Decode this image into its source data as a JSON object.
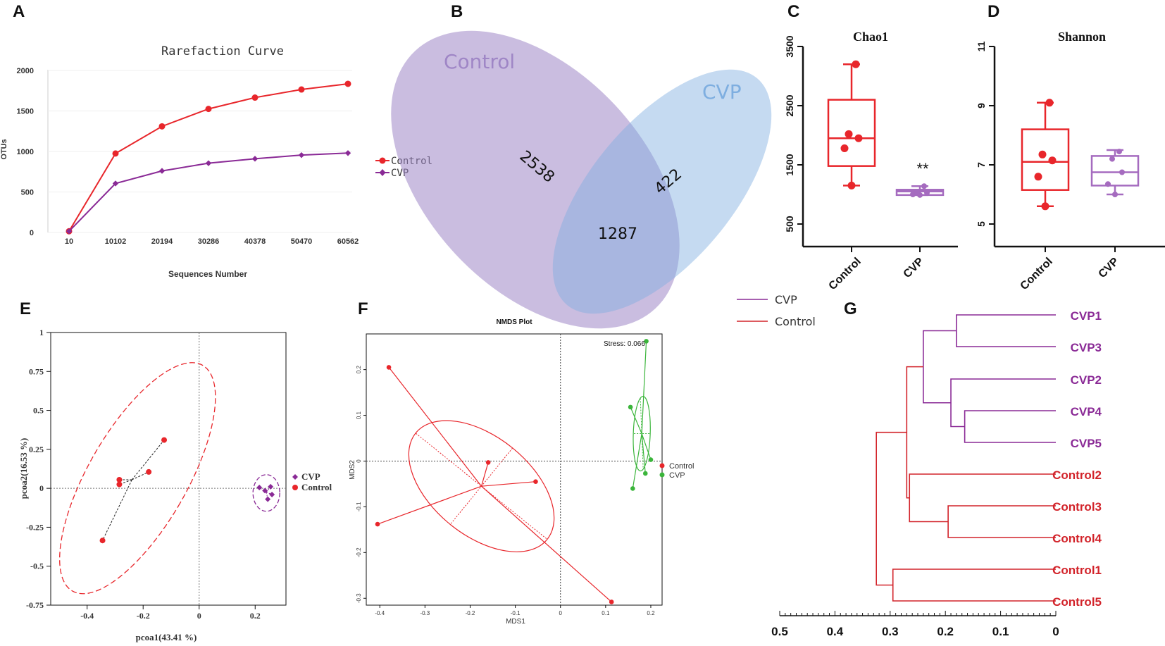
{
  "panel_letters": [
    "A",
    "B",
    "C",
    "D",
    "E",
    "F",
    "G"
  ],
  "chart_data": [
    {
      "id": "A",
      "type": "line",
      "title": "Rarefaction Curve",
      "xlabel": "Sequences Number",
      "ylabel": "OTUs",
      "categories": [
        "10",
        "10102",
        "20194",
        "30286",
        "40378",
        "50470",
        "60562"
      ],
      "ylim": [
        0,
        2000
      ],
      "yticks": [
        0,
        500,
        1000,
        1500,
        2000
      ],
      "series": [
        {
          "name": "Control",
          "color": "#e8262b",
          "marker": "circle",
          "values": [
            15,
            975,
            1310,
            1525,
            1665,
            1765,
            1835
          ]
        },
        {
          "name": "CVP",
          "color": "#8a2a96",
          "marker": "diamond",
          "values": [
            15,
            605,
            760,
            855,
            910,
            955,
            980
          ]
        }
      ]
    },
    {
      "id": "B",
      "type": "venn",
      "sets": [
        {
          "name": "Control",
          "color": "#9f86c6",
          "unique": "2538"
        },
        {
          "name": "CVP",
          "color": "#7eaee0",
          "unique": "422"
        }
      ],
      "intersection": "1287"
    },
    {
      "id": "C",
      "type": "box",
      "title": "Chao1",
      "categories": [
        "Control",
        "CVP"
      ],
      "ylim": [
        500,
        3500
      ],
      "yticks": [
        500,
        1500,
        2500,
        3500
      ],
      "annotation": "**",
      "groups": [
        {
          "name": "Control",
          "color": "#e8262b",
          "min": 1150,
          "q1": 1480,
          "median": 1950,
          "q3": 2600,
          "max": 3200,
          "points": [
            1150,
            1780,
            1950,
            2020,
            3200
          ]
        },
        {
          "name": "CVP",
          "color": "#a56bbf",
          "min": 990,
          "q1": 990,
          "median": 1050,
          "q3": 1080,
          "max": 1140,
          "points": [
            990,
            1000,
            1030,
            1040,
            1140
          ]
        }
      ]
    },
    {
      "id": "D",
      "type": "box",
      "title": "Shannon",
      "categories": [
        "Control",
        "CVP"
      ],
      "ylim": [
        5,
        11
      ],
      "yticks": [
        5,
        7,
        9,
        11
      ],
      "groups": [
        {
          "name": "Control",
          "color": "#e8262b",
          "min": 5.6,
          "q1": 6.15,
          "median": 7.1,
          "q3": 8.2,
          "max": 9.1,
          "points": [
            5.6,
            6.6,
            7.15,
            7.35,
            9.1
          ]
        },
        {
          "name": "CVP",
          "color": "#a56bbf",
          "min": 6.0,
          "q1": 6.3,
          "median": 6.75,
          "q3": 7.3,
          "max": 7.5,
          "points": [
            6.0,
            6.35,
            6.75,
            7.2,
            7.45
          ]
        }
      ]
    },
    {
      "id": "E",
      "type": "scatter",
      "xlabel": "pcoa1(43.41 %)",
      "ylabel": "pcoa2(16.53 %)",
      "xlim": [
        -0.53,
        0.31
      ],
      "ylim": [
        -0.75,
        1.0
      ],
      "xticks": [
        -0.4,
        -0.2,
        0,
        0.2
      ],
      "yticks": [
        -0.75,
        -0.5,
        -0.25,
        0,
        0.25,
        0.5,
        0.75,
        1
      ],
      "series": [
        {
          "name": "CVP",
          "color": "#8a2a96",
          "marker": "diamond",
          "points": [
            [
              0.215,
              0.005
            ],
            [
              0.235,
              -0.015
            ],
            [
              0.255,
              0.01
            ],
            [
              0.26,
              -0.04
            ],
            [
              0.245,
              -0.07
            ]
          ]
        },
        {
          "name": "Control",
          "color": "#e8262b",
          "marker": "circle",
          "centroid": [
            -0.24,
            0.055
          ],
          "points": [
            [
              -0.345,
              -0.335
            ],
            [
              -0.285,
              0.025
            ],
            [
              -0.285,
              0.055
            ],
            [
              -0.18,
              0.105
            ],
            [
              -0.125,
              0.31
            ]
          ]
        }
      ]
    },
    {
      "id": "F",
      "type": "scatter",
      "title": "NMDS Plot",
      "xlabel": "MDS1",
      "ylabel": "MDS2",
      "annotation": "Stress:  0.066",
      "xlim": [
        -0.43,
        0.225
      ],
      "ylim": [
        -0.315,
        0.278
      ],
      "xticks": [
        -0.4,
        -0.3,
        -0.2,
        -0.1,
        0.0,
        0.1,
        0.2
      ],
      "yticks": [
        0.2,
        0.1,
        0.0,
        -0.1,
        -0.2,
        -0.3
      ],
      "series": [
        {
          "name": "Control",
          "color": "#e8262b",
          "centroid": [
            -0.175,
            -0.055
          ],
          "points": [
            [
              -0.38,
              0.205
            ],
            [
              -0.16,
              -0.003
            ],
            [
              -0.055,
              -0.045
            ],
            [
              -0.405,
              -0.138
            ],
            [
              0.113,
              -0.308
            ]
          ]
        },
        {
          "name": "CVP",
          "color": "#3bb53b",
          "centroid": [
            0.18,
            0.06
          ],
          "points": [
            [
              0.19,
              0.262
            ],
            [
              0.155,
              0.118
            ],
            [
              0.2,
              0.003
            ],
            [
              0.188,
              -0.027
            ],
            [
              0.16,
              -0.06
            ]
          ]
        }
      ]
    },
    {
      "id": "G",
      "type": "dendrogram",
      "legend": [
        {
          "name": "CVP",
          "color": "#8a2a96"
        },
        {
          "name": "Control",
          "color": "#d2232a"
        }
      ],
      "leaves": [
        {
          "name": "CVP1",
          "color": "#8a2a96"
        },
        {
          "name": "CVP3",
          "color": "#8a2a96"
        },
        {
          "name": "CVP2",
          "color": "#8a2a96"
        },
        {
          "name": "CVP4",
          "color": "#8a2a96"
        },
        {
          "name": "CVP5",
          "color": "#8a2a96"
        },
        {
          "name": "Control2",
          "color": "#d2232a"
        },
        {
          "name": "Control3",
          "color": "#d2232a"
        },
        {
          "name": "Control4",
          "color": "#d2232a"
        },
        {
          "name": "Control1",
          "color": "#d2232a"
        },
        {
          "name": "Control5",
          "color": "#d2232a"
        }
      ],
      "merges": [
        {
          "a": 0,
          "b": 1,
          "height": 0.18,
          "color": "#8a2a96"
        },
        {
          "a": 3,
          "b": 4,
          "height": 0.165,
          "color": "#8a2a96"
        },
        {
          "a": 2,
          "b": "m1",
          "height": 0.19,
          "color": "#8a2a96"
        },
        {
          "a": "m0",
          "b": "m2",
          "height": 0.24,
          "color": "#8a2a96"
        },
        {
          "a": 6,
          "b": 7,
          "height": 0.195,
          "color": "#d2232a"
        },
        {
          "a": 5,
          "b": "m4",
          "height": 0.265,
          "color": "#d2232a"
        },
        {
          "a": "m3",
          "b": "m5",
          "height": 0.27,
          "color": "#d2232a"
        },
        {
          "a": 8,
          "b": 9,
          "height": 0.295,
          "color": "#d2232a"
        },
        {
          "a": "m6",
          "b": "m7",
          "height": 0.325,
          "color": "#d2232a"
        }
      ],
      "axis": {
        "ticks": [
          0.5,
          0.4,
          0.3,
          0.2,
          0.1,
          0
        ],
        "labels": [
          "0.5",
          "0.4",
          "0.3",
          "0.2",
          "0.1",
          "0"
        ],
        "max": 0.5
      }
    }
  ]
}
